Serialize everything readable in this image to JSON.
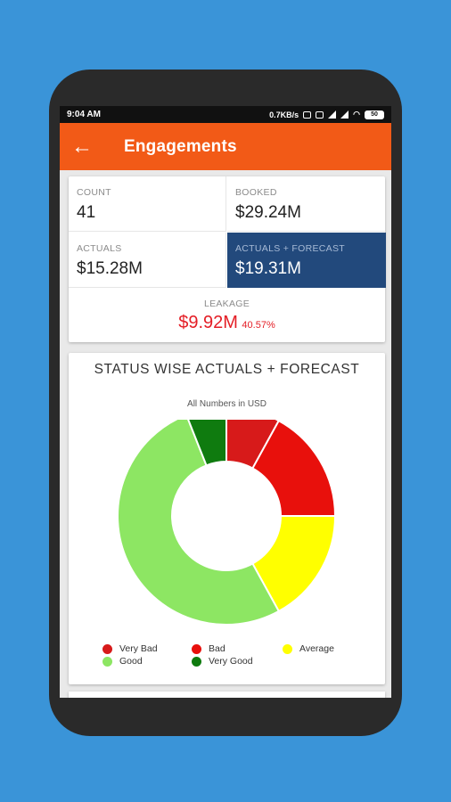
{
  "status_bar": {
    "time": "9:04 AM",
    "net_speed": "0.7KB/s",
    "battery": "50"
  },
  "app_bar": {
    "title": "Engagements",
    "back_icon": "arrow-left-icon"
  },
  "summary": {
    "count": {
      "label": "COUNT",
      "value": "41"
    },
    "booked": {
      "label": "BOOKED",
      "value": "$29.24M"
    },
    "actuals": {
      "label": "ACTUALS",
      "value": "$15.28M"
    },
    "actuals_forecast": {
      "label": "ACTUALS + FORECAST",
      "value": "$19.31M",
      "highlight_color": "#22497c"
    },
    "leakage": {
      "label": "LEAKAGE",
      "value": "$9.92M",
      "percent": "40.57%",
      "color": "#e41e26"
    }
  },
  "chart_data": {
    "type": "pie",
    "title": "STATUS WISE ACTUALS + FORECAST",
    "subtitle": "All Numbers in USD",
    "donut": true,
    "legend_position": "bottom",
    "slices": [
      {
        "name": "Very Bad",
        "value": 8,
        "color": "#d71a1a"
      },
      {
        "name": "Bad",
        "value": 17,
        "color": "#e8100c"
      },
      {
        "name": "Average",
        "value": 17,
        "color": "#ffff00"
      },
      {
        "name": "Good",
        "value": 52,
        "color": "#8de663"
      },
      {
        "name": "Very Good",
        "value": 6,
        "color": "#0f7b0f"
      }
    ],
    "legend": [
      {
        "name": "Very Bad",
        "color": "#d71a1a"
      },
      {
        "name": "Bad",
        "color": "#e8100c"
      },
      {
        "name": "Average",
        "color": "#ffff00"
      },
      {
        "name": "Good",
        "color": "#8de663"
      },
      {
        "name": "Very Good",
        "color": "#0f7b0f"
      }
    ]
  }
}
